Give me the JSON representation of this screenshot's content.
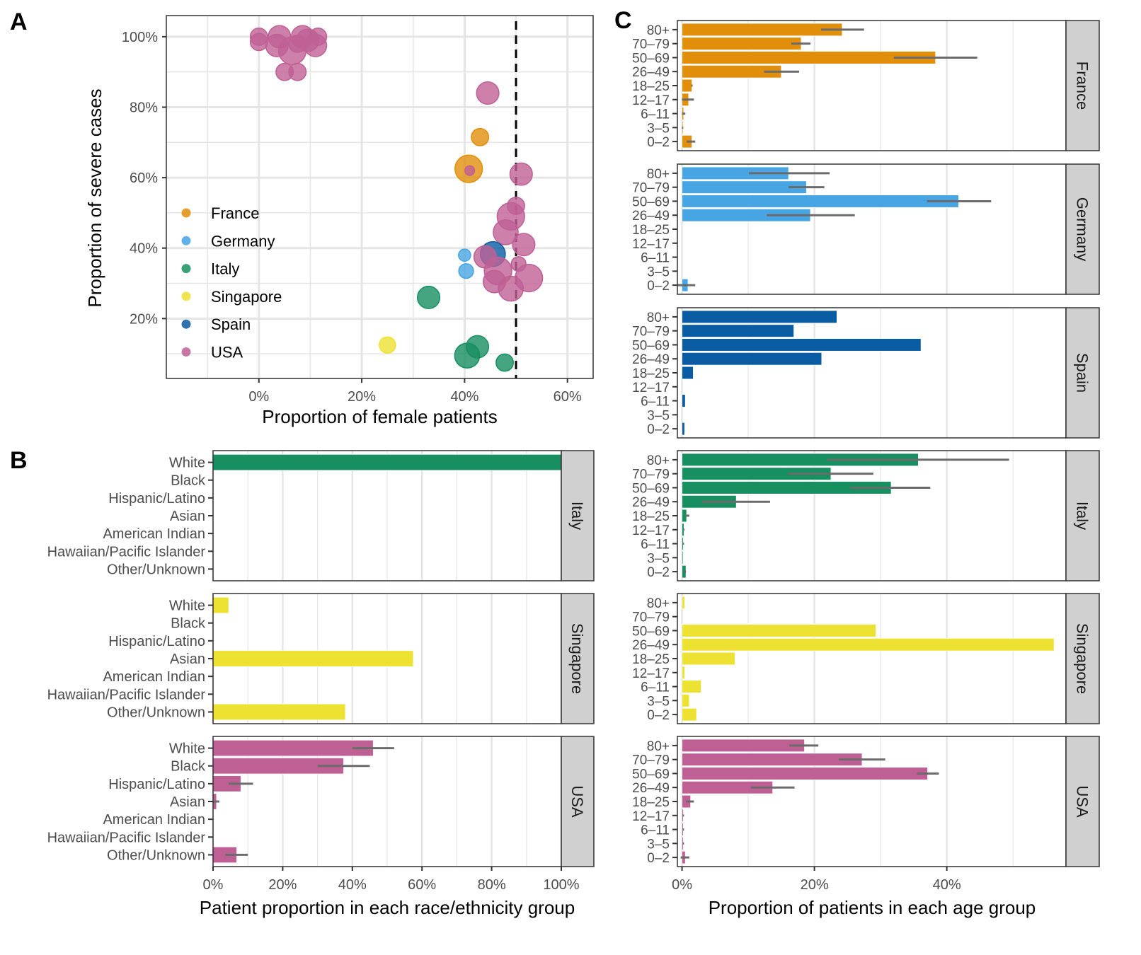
{
  "colors": {
    "France": "#E18E0A",
    "Germany": "#48A5E3",
    "Italy": "#178F60",
    "Singapore": "#EDE132",
    "Spain": "#0A5CA2",
    "USA": "#BF6095",
    "errorbar": "#6b6b6b",
    "strip": "#d0d0d0",
    "grid": "#e5e5e5",
    "refline": "#000000"
  },
  "panel_labels": [
    "A",
    "B",
    "C"
  ],
  "chart_data": [
    {
      "id": "A",
      "type": "scatter",
      "title": "",
      "xlabel": "Proportion of female patients",
      "ylabel": "Proportion of severe cases",
      "xlim": [
        -18,
        65
      ],
      "ylim": [
        3,
        106
      ],
      "xticks": [
        0,
        20,
        40,
        60
      ],
      "xtick_labels": [
        "0%",
        "20%",
        "40%",
        "60%"
      ],
      "yticks": [
        20,
        40,
        60,
        80,
        100
      ],
      "ytick_labels": [
        "20%",
        "40%",
        "60%",
        "80%",
        "100%"
      ],
      "grid": true,
      "reference_line": {
        "x": 50,
        "style": "dashed"
      },
      "legend": {
        "placement": "inside-left",
        "entries": [
          "France",
          "Germany",
          "Italy",
          "Singapore",
          "Spain",
          "USA"
        ]
      },
      "points": [
        {
          "country": "USA",
          "x": 0,
          "y": 100,
          "size": 2
        },
        {
          "country": "USA",
          "x": 0,
          "y": 98.5,
          "size": 2
        },
        {
          "country": "USA",
          "x": 4,
          "y": 100,
          "size": 3
        },
        {
          "country": "USA",
          "x": 3.5,
          "y": 97.5,
          "size": 3
        },
        {
          "country": "USA",
          "x": 6.5,
          "y": 96,
          "size": 4
        },
        {
          "country": "USA",
          "x": 8.5,
          "y": 100,
          "size": 3
        },
        {
          "country": "USA",
          "x": 7.5,
          "y": 98,
          "size": 2
        },
        {
          "country": "USA",
          "x": 9.5,
          "y": 99,
          "size": 3
        },
        {
          "country": "USA",
          "x": 11.5,
          "y": 100,
          "size": 2
        },
        {
          "country": "USA",
          "x": 11,
          "y": 97.5,
          "size": 3
        },
        {
          "country": "USA",
          "x": 5,
          "y": 90,
          "size": 2
        },
        {
          "country": "USA",
          "x": 7.5,
          "y": 90,
          "size": 2
        },
        {
          "country": "USA",
          "x": 44.5,
          "y": 84,
          "size": 3
        },
        {
          "country": "France",
          "x": 43,
          "y": 71.5,
          "size": 2
        },
        {
          "country": "France",
          "x": 40.8,
          "y": 62.5,
          "size": 4
        },
        {
          "country": "USA",
          "x": 41,
          "y": 62,
          "size": 0.5
        },
        {
          "country": "USA",
          "x": 51,
          "y": 61,
          "size": 3
        },
        {
          "country": "USA",
          "x": 50,
          "y": 52,
          "size": 2
        },
        {
          "country": "USA",
          "x": 49,
          "y": 49,
          "size": 4
        },
        {
          "country": "USA",
          "x": 48,
          "y": 44.5,
          "size": 3.5
        },
        {
          "country": "USA",
          "x": 51.5,
          "y": 41,
          "size": 3
        },
        {
          "country": "Spain",
          "x": 45.5,
          "y": 38.3,
          "size": 3.5
        },
        {
          "country": "USA",
          "x": 44,
          "y": 37.5,
          "size": 3
        },
        {
          "country": "Germany",
          "x": 40,
          "y": 38,
          "size": 1
        },
        {
          "country": "Germany",
          "x": 40.3,
          "y": 33.5,
          "size": 1.5
        },
        {
          "country": "USA",
          "x": 50.5,
          "y": 35.5,
          "size": 1.5
        },
        {
          "country": "USA",
          "x": 46.5,
          "y": 33.5,
          "size": 4
        },
        {
          "country": "USA",
          "x": 52.5,
          "y": 31.5,
          "size": 4
        },
        {
          "country": "USA",
          "x": 45.8,
          "y": 30.5,
          "size": 3
        },
        {
          "country": "USA",
          "x": 49,
          "y": 28.5,
          "size": 3.5
        },
        {
          "country": "Italy",
          "x": 33,
          "y": 26,
          "size": 3
        },
        {
          "country": "Singapore",
          "x": 25,
          "y": 12.5,
          "size": 1.8
        },
        {
          "country": "Italy",
          "x": 42.5,
          "y": 12,
          "size": 3
        },
        {
          "country": "Italy",
          "x": 40.5,
          "y": 9.5,
          "size": 3.5
        },
        {
          "country": "Italy",
          "x": 47.8,
          "y": 7.5,
          "size": 2
        }
      ]
    },
    {
      "id": "B",
      "type": "bar",
      "orientation": "horizontal",
      "xlabel": "Patient proportion in each race/ethnicity group",
      "ylabel": "",
      "xlim": [
        0,
        100
      ],
      "xticks": [
        0,
        20,
        40,
        60,
        80,
        100
      ],
      "xtick_labels": [
        "0%",
        "20%",
        "40%",
        "60%",
        "80%",
        "100%"
      ],
      "grid": true,
      "categories": [
        "White",
        "Black",
        "Hispanic/Latino",
        "Asian",
        "American Indian",
        "Hawaiian/Pacific Islander",
        "Other/Unknown"
      ],
      "facets": [
        {
          "name": "Italy",
          "values": [
            100,
            0,
            0,
            0,
            0,
            0,
            0
          ],
          "errors": [
            null,
            null,
            null,
            null,
            null,
            null,
            null
          ]
        },
        {
          "name": "Singapore",
          "values": [
            4.5,
            0,
            0,
            57.5,
            0,
            0,
            38
          ],
          "errors": [
            null,
            null,
            null,
            null,
            null,
            null,
            null
          ]
        },
        {
          "name": "USA",
          "values": [
            46,
            37.5,
            8,
            1,
            0,
            0,
            6.8
          ],
          "errors": [
            [
              40,
              52
            ],
            [
              30,
              45
            ],
            [
              4.5,
              11.5
            ],
            [
              0,
              1.8
            ],
            null,
            null,
            [
              3.5,
              10
            ]
          ]
        }
      ]
    },
    {
      "id": "C",
      "type": "bar",
      "orientation": "horizontal",
      "xlabel": "Proportion of patients in each age group",
      "ylabel": "",
      "xlim": [
        -0.7,
        58
      ],
      "xticks": [
        0,
        20,
        40
      ],
      "xtick_labels": [
        "0%",
        "20%",
        "40%"
      ],
      "minor_grid": [
        10,
        30,
        50
      ],
      "grid": true,
      "categories": [
        "80+",
        "70–79",
        "50–69",
        "26–49",
        "18–25",
        "12–17",
        "6–11",
        "3–5",
        "0–2"
      ],
      "facets": [
        {
          "name": "France",
          "values": [
            24.2,
            18,
            38.3,
            15,
            1.5,
            1,
            0.25,
            0.15,
            1.5
          ],
          "errors": [
            [
              21,
              27.5
            ],
            [
              16.5,
              19.4
            ],
            [
              32,
              44.6
            ],
            [
              12.4,
              17.7
            ],
            [
              1.4,
              1.6
            ],
            [
              0,
              1.8
            ],
            [
              0,
              0.5
            ],
            [
              0,
              0.2
            ],
            [
              0.7,
              2
            ]
          ]
        },
        {
          "name": "Germany",
          "values": [
            16.1,
            18.8,
            41.8,
            19.4,
            0,
            0,
            0,
            0,
            0.9
          ],
          "errors": [
            [
              10.1,
              22.3
            ],
            [
              16.1,
              21.5
            ],
            [
              37,
              46.7
            ],
            [
              12.8,
              26.1
            ],
            null,
            null,
            null,
            null,
            [
              -0.7,
              2
            ]
          ]
        },
        {
          "name": "Spain",
          "values": [
            23.4,
            16.9,
            36.1,
            21.1,
            1.7,
            0,
            0.5,
            0,
            0.4
          ],
          "errors": [
            null,
            null,
            null,
            null,
            null,
            null,
            null,
            null,
            null
          ]
        },
        {
          "name": "Italy",
          "values": [
            35.7,
            22.5,
            31.6,
            8.2,
            0.7,
            0.3,
            0.2,
            0.1,
            0.6
          ],
          "errors": [
            [
              21.9,
              49.4
            ],
            [
              16,
              28.9
            ],
            [
              25.4,
              37.5
            ],
            [
              3,
              13.3
            ],
            [
              0.5,
              1.1
            ],
            [
              0.3,
              0.4
            ],
            [
              0.1,
              0.3
            ],
            null,
            [
              0.3,
              0.6
            ]
          ]
        },
        {
          "name": "Singapore",
          "values": [
            0.4,
            0,
            29.3,
            56.2,
            8,
            0.4,
            2.9,
            1.1,
            2.2
          ],
          "errors": [
            null,
            null,
            null,
            null,
            null,
            null,
            null,
            null,
            null
          ]
        },
        {
          "name": "USA",
          "values": [
            18.5,
            27.2,
            37.1,
            13.7,
            1.3,
            0.2,
            0.2,
            0.2,
            0.5
          ],
          "errors": [
            [
              16.2,
              20.6
            ],
            [
              23.7,
              30.7
            ],
            [
              35.5,
              38.8
            ],
            [
              10.4,
              17
            ],
            [
              0.6,
              1.8
            ],
            [
              0.1,
              0.3
            ],
            [
              0.1,
              0.3
            ],
            [
              0.1,
              0.3
            ],
            [
              -0.2,
              1.1
            ]
          ]
        }
      ]
    }
  ]
}
